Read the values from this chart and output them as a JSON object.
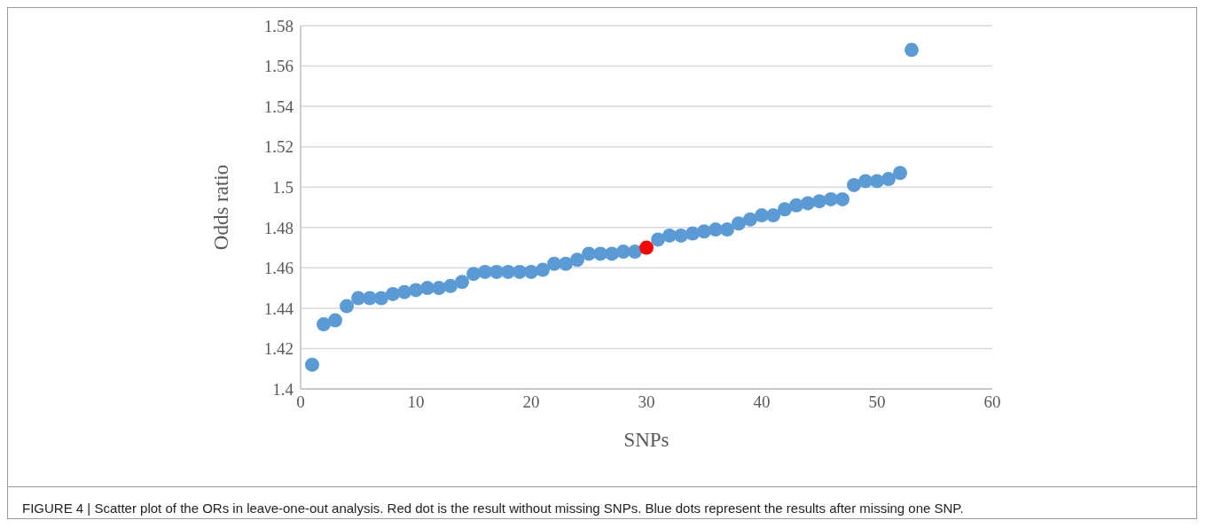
{
  "chart_data": {
    "type": "scatter",
    "xlabel": "SNPs",
    "ylabel": "Odds ratio",
    "xlim": [
      0,
      60
    ],
    "xticks": [
      0,
      10,
      20,
      30,
      40,
      50,
      60
    ],
    "ylim": [
      1.4,
      1.58
    ],
    "yticks": [
      1.4,
      1.42,
      1.44,
      1.46,
      1.48,
      1.5,
      1.52,
      1.54,
      1.56,
      1.58
    ],
    "grid": "y",
    "marker": "circle",
    "series": [
      {
        "color": "#5b9bd5",
        "x": [
          1,
          2,
          3,
          4,
          5,
          6,
          7,
          8,
          9,
          10,
          11,
          12,
          13,
          14,
          15,
          16,
          17,
          18,
          19,
          20,
          21,
          22,
          23,
          24,
          25,
          26,
          27,
          28,
          29,
          31,
          32,
          33,
          34,
          35,
          36,
          37,
          38,
          39,
          40,
          41,
          42,
          43,
          44,
          45,
          46,
          47,
          48,
          49,
          50,
          51,
          52,
          53
        ],
        "values": [
          1.412,
          1.432,
          1.434,
          1.441,
          1.445,
          1.445,
          1.445,
          1.447,
          1.448,
          1.449,
          1.45,
          1.45,
          1.451,
          1.453,
          1.457,
          1.458,
          1.458,
          1.458,
          1.458,
          1.458,
          1.459,
          1.462,
          1.462,
          1.464,
          1.467,
          1.467,
          1.467,
          1.468,
          1.468,
          1.474,
          1.476,
          1.476,
          1.477,
          1.478,
          1.479,
          1.479,
          1.482,
          1.484,
          1.486,
          1.486,
          1.489,
          1.491,
          1.492,
          1.493,
          1.494,
          1.494,
          1.501,
          1.503,
          1.503,
          1.504,
          1.507,
          1.568
        ]
      },
      {
        "color": "#ff0000",
        "x": [
          30
        ],
        "values": [
          1.47
        ]
      }
    ],
    "annotations": [
      "FIGURE 4 | Scatter plot of the ORs in leave-one-out analysis. Red dot is the result without missing SNPs. Blue dots represent the results after missing one SNP."
    ]
  }
}
